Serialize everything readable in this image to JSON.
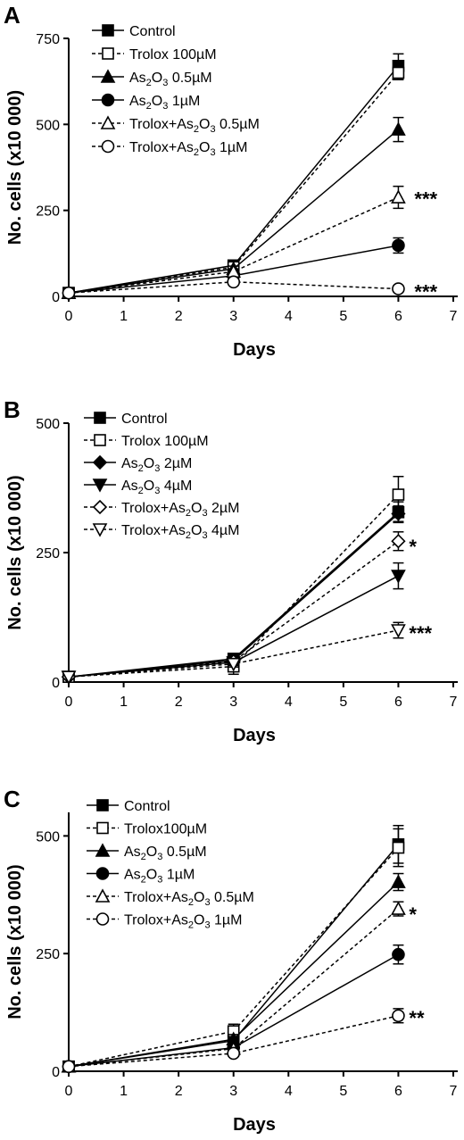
{
  "chart_data": [
    {
      "type": "line",
      "panel": "A",
      "xlabel": "Days",
      "ylabel": "No. cells (x10 000)",
      "xlim": [
        0,
        7
      ],
      "ylim": [
        0,
        750
      ],
      "xticks": [
        "0",
        "1",
        "2",
        "3",
        "4",
        "5",
        "6",
        "7"
      ],
      "yticks": [
        "0",
        "250",
        "500",
        "750"
      ],
      "x": [
        0,
        3,
        6
      ],
      "series": [
        {
          "name": "Control",
          "marker": "square",
          "filled": true,
          "dashed": false,
          "values": [
            10,
            90,
            670
          ],
          "err": [
            0,
            8,
            35
          ]
        },
        {
          "name": "Trolox 100µM",
          "marker": "square",
          "filled": false,
          "dashed": true,
          "values": [
            10,
            85,
            650
          ],
          "err": [
            0,
            8,
            20
          ]
        },
        {
          "name": "As₂O₃ 0.5µM",
          "marker": "triangle-up",
          "filled": true,
          "dashed": false,
          "values": [
            10,
            80,
            485
          ],
          "err": [
            0,
            8,
            35
          ]
        },
        {
          "name": "As₂O₃ 1µM",
          "marker": "circle",
          "filled": true,
          "dashed": false,
          "values": [
            10,
            60,
            148
          ],
          "err": [
            0,
            8,
            22
          ]
        },
        {
          "name": "Trolox+As₂O₃ 0.5µM",
          "marker": "triangle-up",
          "filled": false,
          "dashed": true,
          "values": [
            10,
            72,
            288
          ],
          "err": [
            0,
            8,
            32
          ]
        },
        {
          "name": "Trolox+As₂O₃ 1µM",
          "marker": "circle",
          "filled": false,
          "dashed": true,
          "values": [
            10,
            42,
            22
          ],
          "err": [
            0,
            6,
            6
          ]
        }
      ],
      "annotations": [
        {
          "text": "***",
          "x": 6,
          "y": 300
        },
        {
          "text": "***",
          "x": 6,
          "y": 30
        }
      ]
    },
    {
      "type": "line",
      "panel": "B",
      "xlabel": "Days",
      "ylabel": "No. cells (x10 000)",
      "xlim": [
        0,
        7
      ],
      "ylim": [
        0,
        500
      ],
      "xticks": [
        "0",
        "1",
        "2",
        "3",
        "4",
        "5",
        "6",
        "7"
      ],
      "yticks": [
        "0",
        "250",
        "500"
      ],
      "x": [
        0,
        3,
        6
      ],
      "series": [
        {
          "name": "Control",
          "marker": "square",
          "filled": true,
          "dashed": false,
          "values": [
            10,
            45,
            328
          ],
          "err": [
            0,
            6,
            20
          ]
        },
        {
          "name": "Trolox 100µM",
          "marker": "square",
          "filled": false,
          "dashed": true,
          "values": [
            10,
            30,
            362
          ],
          "err": [
            0,
            15,
            35
          ]
        },
        {
          "name": "As₂O₃ 2µM",
          "marker": "diamond",
          "filled": true,
          "dashed": false,
          "values": [
            10,
            42,
            325
          ],
          "err": [
            0,
            6,
            15
          ]
        },
        {
          "name": "As₂O₃ 4µM",
          "marker": "triangle-down",
          "filled": true,
          "dashed": false,
          "values": [
            10,
            38,
            205
          ],
          "err": [
            0,
            6,
            25
          ]
        },
        {
          "name": "Trolox+As₂O₃ 2µM",
          "marker": "diamond",
          "filled": false,
          "dashed": true,
          "values": [
            10,
            40,
            272
          ],
          "err": [
            0,
            6,
            18
          ]
        },
        {
          "name": "Trolox+As₂O₃ 4µM",
          "marker": "triangle-down",
          "filled": false,
          "dashed": true,
          "values": [
            10,
            35,
            100
          ],
          "err": [
            0,
            6,
            15
          ]
        }
      ],
      "annotations": [
        {
          "text": "*",
          "x": 6,
          "y": 272
        },
        {
          "text": "***",
          "x": 6,
          "y": 105
        }
      ]
    },
    {
      "type": "line",
      "panel": "C",
      "xlabel": "Days",
      "ylabel": "No. cells (x10 000)",
      "xlim": [
        0,
        7
      ],
      "ylim": [
        0,
        550
      ],
      "xticks": [
        "0",
        "1",
        "2",
        "3",
        "4",
        "5",
        "6",
        "7"
      ],
      "yticks": [
        "0",
        "250",
        "500"
      ],
      "x": [
        0,
        3,
        6
      ],
      "series": [
        {
          "name": "Control",
          "marker": "square",
          "filled": true,
          "dashed": false,
          "values": [
            10,
            65,
            482
          ],
          "err": [
            0,
            10,
            40
          ]
        },
        {
          "name": "Trolox100µM",
          "marker": "square",
          "filled": false,
          "dashed": true,
          "values": [
            10,
            85,
            475
          ],
          "err": [
            0,
            15,
            40
          ]
        },
        {
          "name": "As₂O₃ 0.5µM",
          "marker": "triangle-up",
          "filled": true,
          "dashed": false,
          "values": [
            10,
            68,
            402
          ],
          "err": [
            0,
            10,
            18
          ]
        },
        {
          "name": "As₂O₃ 1µM",
          "marker": "circle",
          "filled": true,
          "dashed": false,
          "values": [
            10,
            50,
            248
          ],
          "err": [
            0,
            8,
            20
          ]
        },
        {
          "name": "Trolox+As₂O₃ 0.5µM",
          "marker": "triangle-up",
          "filled": false,
          "dashed": true,
          "values": [
            10,
            48,
            345
          ],
          "err": [
            0,
            8,
            15
          ]
        },
        {
          "name": "Trolox+As₂O₃ 1µM",
          "marker": "circle",
          "filled": false,
          "dashed": true,
          "values": [
            10,
            38,
            118
          ],
          "err": [
            0,
            6,
            15
          ]
        }
      ],
      "annotations": [
        {
          "text": "*",
          "x": 6,
          "y": 345
        },
        {
          "text": "**",
          "x": 6,
          "y": 125
        }
      ]
    }
  ]
}
